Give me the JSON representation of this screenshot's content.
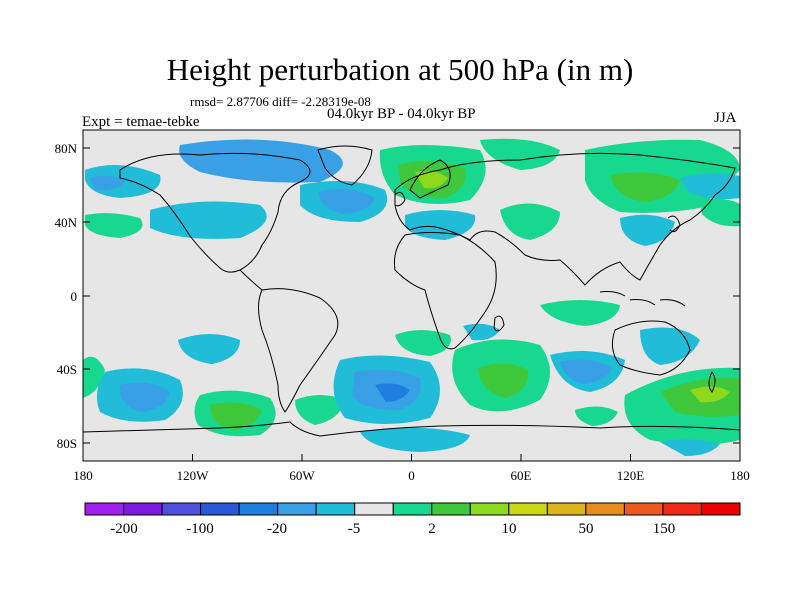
{
  "title": "Height perturbation at 500 hPa (in m)",
  "stats_line": "rmsd= 2.87706 diff= -2.28319e-08",
  "period_line": "04.0kyr BP - 04.0kyr BP",
  "experiment_label": "Expt = temae-tebke",
  "season_label": "JJA",
  "map": {
    "lat_labels": [
      "80N",
      "40N",
      "0",
      "40S",
      "80S"
    ],
    "lon_labels": [
      "180",
      "120W",
      "60W",
      "0",
      "60E",
      "120E",
      "180"
    ],
    "background_color": "#e6e6e6"
  },
  "colorbar": {
    "labels": [
      "-200",
      "-100",
      "-20",
      "-5",
      "2",
      "10",
      "50",
      "150"
    ],
    "colors": [
      "#a020f0",
      "#7c1ae0",
      "#5050e0",
      "#2a58d8",
      "#1e7fe0",
      "#3aa0e6",
      "#20bcd8",
      "#e6e6e6",
      "#18d890",
      "#40c83c",
      "#8ed81e",
      "#c8d814",
      "#dcb41e",
      "#e88c1e",
      "#ee5a1e",
      "#f02814",
      "#e80000"
    ]
  }
}
